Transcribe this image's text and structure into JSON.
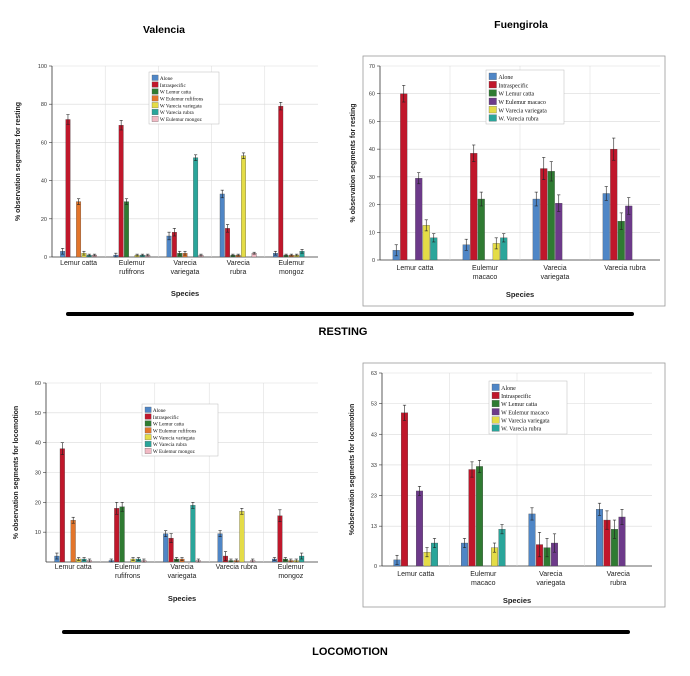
{
  "colors": {
    "Alone": "#4f86c6",
    "Intraspecific": "#c0172b",
    "W Lemur catta": "#2f7b32",
    "W Eulemur rufifrons": "#e3752b",
    "W Eulemur macaco": "#6d3a8a",
    "W Varecia variegata": "#e4dc47",
    "W Varecia rubra": "#2aa59a",
    "W Eulemur mongoz": "#f2b9c4",
    "grid": "#d9d9d9",
    "axis": "#333333"
  },
  "section_labels": {
    "resting": "RESTING",
    "locomotion": "LOCOMOTION"
  },
  "chart_data": [
    {
      "id": "valencia-resting",
      "type": "bar",
      "title": "Valencia",
      "xlabel": "Species",
      "ylabel": "% observation segments for resting",
      "ylim": [
        0,
        100
      ],
      "yticks": [
        0,
        20,
        40,
        60,
        80,
        100
      ],
      "grid": true,
      "legend_placement": "top-center",
      "categories": [
        [
          "Lemur catta"
        ],
        [
          "Eulemur",
          "rufifrons"
        ],
        [
          "Varecia",
          "variegata"
        ],
        [
          "Varecia",
          "rubra"
        ],
        [
          "Eulemur",
          "mongoz"
        ]
      ],
      "series": [
        {
          "name": "Alone",
          "values": [
            3,
            1,
            11,
            33,
            2
          ],
          "errors": [
            1.5,
            1,
            2,
            2,
            1
          ]
        },
        {
          "name": "Intraspecific",
          "values": [
            72,
            69,
            13,
            15,
            79
          ],
          "errors": [
            2.5,
            2.5,
            2,
            2,
            2
          ]
        },
        {
          "name": "W Lemur catta",
          "values": [
            null,
            29,
            2,
            1,
            1
          ],
          "errors": [
            0,
            1.5,
            1,
            0.5,
            0.5
          ]
        },
        {
          "name": "W Eulemur rufifrons",
          "values": [
            29,
            null,
            2,
            1,
            1
          ],
          "errors": [
            1.5,
            0,
            1,
            0.5,
            0.5
          ]
        },
        {
          "name": "W Varecia variegata",
          "values": [
            2,
            1,
            null,
            53,
            1
          ],
          "errors": [
            1,
            0.5,
            0,
            1.5,
            0.5
          ]
        },
        {
          "name": "W Varecia rubra",
          "values": [
            1,
            1,
            52,
            null,
            3
          ],
          "errors": [
            0.5,
            0.5,
            1.5,
            0,
            1
          ]
        },
        {
          "name": "W Eulemur mongoz",
          "values": [
            1,
            1,
            1,
            2,
            null
          ],
          "errors": [
            0.5,
            0.5,
            0.5,
            0.5,
            0
          ]
        }
      ]
    },
    {
      "id": "fuengirola-resting",
      "type": "bar",
      "title": "Fuengirola",
      "xlabel": "Species",
      "ylabel": "% observation segments for resting",
      "ylim": [
        0,
        70
      ],
      "yticks": [
        0,
        10,
        20,
        30,
        40,
        50,
        60,
        70
      ],
      "grid": true,
      "legend_placement": "top-center",
      "categories": [
        [
          "Lemur catta"
        ],
        [
          "Eulemur",
          "macaco"
        ],
        [
          "Varecia",
          "variegata"
        ],
        [
          "Varecia rubra"
        ]
      ],
      "series": [
        {
          "name": "Alone",
          "values": [
            3.5,
            5.5,
            22,
            24
          ],
          "errors": [
            2,
            2,
            2.5,
            2.5
          ]
        },
        {
          "name": "Intraspecific",
          "values": [
            60,
            38.5,
            33,
            40
          ],
          "errors": [
            3,
            3,
            4,
            4
          ]
        },
        {
          "name": "W Lemur catta",
          "values": [
            null,
            22,
            32,
            14
          ],
          "errors": [
            0,
            2.5,
            3.5,
            3
          ]
        },
        {
          "name": "W Eulemur macaco",
          "values": [
            29.5,
            null,
            20.5,
            19.5
          ],
          "errors": [
            2,
            0,
            3,
            3
          ]
        },
        {
          "name": "W Varecia variegata",
          "values": [
            12.5,
            6,
            null,
            null
          ],
          "errors": [
            2,
            2,
            0,
            0
          ]
        },
        {
          "name": "W. Varecia rubra",
          "values": [
            8,
            8,
            null,
            null
          ],
          "errors": [
            1.5,
            1.5,
            0,
            0
          ]
        }
      ]
    },
    {
      "id": "valencia-locomotion",
      "type": "bar",
      "title": "",
      "xlabel": "Species",
      "ylabel": "% observation segments for locomotion",
      "ylim": [
        0,
        60
      ],
      "yticks": [
        10,
        20,
        30,
        40,
        50,
        60
      ],
      "grid": true,
      "legend_placement": "top-center",
      "categories": [
        [
          "Lemur catta"
        ],
        [
          "Eulemur",
          "rufifrons"
        ],
        [
          "Varecia",
          "variegata"
        ],
        [
          "Varecia rubra"
        ],
        [
          "Eulemur",
          "mongoz"
        ]
      ],
      "series": [
        {
          "name": "Alone",
          "values": [
            2,
            0.5,
            9.5,
            9.5,
            1
          ],
          "errors": [
            1,
            0.5,
            1,
            1,
            0.5
          ]
        },
        {
          "name": "Intraspecific",
          "values": [
            38,
            18,
            8,
            2,
            15.5
          ],
          "errors": [
            2,
            2,
            1.5,
            1.5,
            2
          ]
        },
        {
          "name": "W Lemur catta",
          "values": [
            null,
            18.5,
            1,
            0.5,
            1
          ],
          "errors": [
            0,
            1.5,
            0.5,
            0.5,
            0.5
          ]
        },
        {
          "name": "W Eulemur rufifrons",
          "values": [
            14,
            null,
            1,
            0.5,
            0.5
          ],
          "errors": [
            1,
            0,
            0.5,
            0.5,
            0.5
          ]
        },
        {
          "name": "W Varecia variegata",
          "values": [
            1,
            1,
            null,
            17,
            0.5
          ],
          "errors": [
            0.5,
            0.5,
            0,
            1,
            0.5
          ]
        },
        {
          "name": "W Varecia rubra",
          "values": [
            1,
            1,
            19,
            null,
            2
          ],
          "errors": [
            0.5,
            0.5,
            1,
            0,
            1
          ]
        },
        {
          "name": "W Eulemur mongoz",
          "values": [
            0.5,
            0.5,
            0.5,
            0.5,
            null
          ],
          "errors": [
            0.5,
            0.5,
            0.5,
            0.5,
            0
          ]
        }
      ]
    },
    {
      "id": "fuengirola-locomotion",
      "type": "bar",
      "title": "",
      "xlabel": "Species",
      "ylabel": "%observation segments for locomotion",
      "ylim": [
        0,
        63
      ],
      "yticks": [
        0,
        13,
        23,
        33,
        43,
        53,
        63
      ],
      "grid": true,
      "legend_placement": "top-center",
      "categories": [
        [
          "Lemur catta"
        ],
        [
          "Eulemur",
          "macaco"
        ],
        [
          "Varecia",
          "variegata"
        ],
        [
          "Varecia",
          "rubra"
        ]
      ],
      "series": [
        {
          "name": "Alone",
          "values": [
            2,
            7.5,
            17,
            18.5
          ],
          "errors": [
            1.5,
            1.5,
            2,
            2
          ]
        },
        {
          "name": "Intraspecific",
          "values": [
            50,
            31.5,
            7,
            15
          ],
          "errors": [
            2.5,
            2.5,
            4,
            3
          ]
        },
        {
          "name": "W Lemur catta",
          "values": [
            null,
            32.5,
            6,
            12
          ],
          "errors": [
            0,
            2,
            3,
            3
          ]
        },
        {
          "name": "W Eulemur macaco",
          "values": [
            24.5,
            null,
            7.5,
            16
          ],
          "errors": [
            1.5,
            0,
            3,
            2.5
          ]
        },
        {
          "name": "W Varecia variegata",
          "values": [
            4.5,
            6,
            null,
            null
          ],
          "errors": [
            1.5,
            1.5,
            0,
            0
          ]
        },
        {
          "name": "W. Varecia rubra",
          "values": [
            7.5,
            12,
            null,
            null
          ],
          "errors": [
            1.5,
            1.5,
            0,
            0
          ]
        }
      ]
    }
  ]
}
